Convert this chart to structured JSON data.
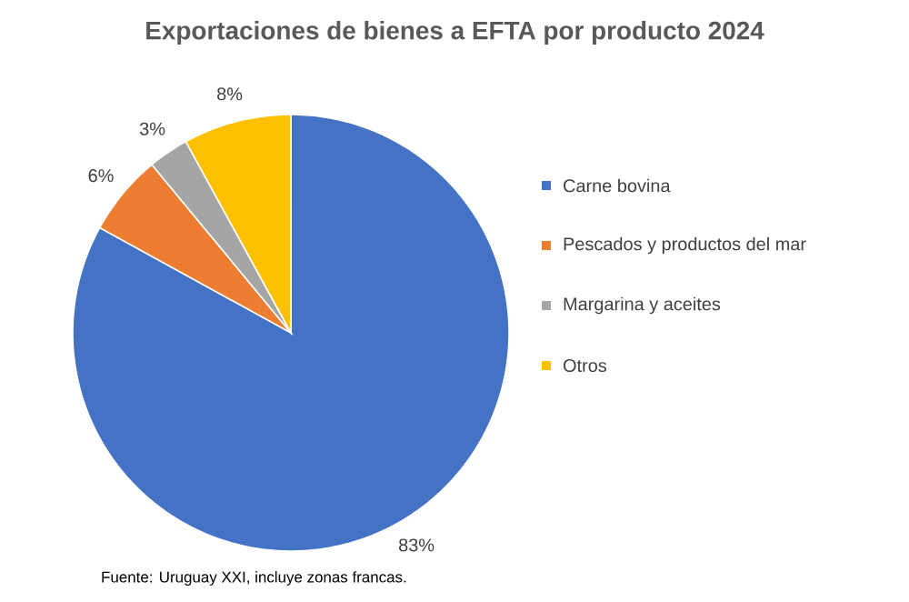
{
  "chart_data": {
    "type": "pie",
    "title": "Exportaciones de bienes a EFTA por producto 2024",
    "categories": [
      "Carne bovina",
      "Pescados y productos del mar",
      "Margarina y aceites",
      "Otros"
    ],
    "values": [
      83,
      6,
      3,
      8
    ],
    "value_labels": [
      "83%",
      "6%",
      "3%",
      "8%"
    ],
    "colors": [
      "#4472c4",
      "#ed7d31",
      "#a5a5a5",
      "#ffc000"
    ],
    "legend": "right",
    "annotations": [
      "Fuente: Uruguay XXI, incluye zonas francas."
    ]
  }
}
